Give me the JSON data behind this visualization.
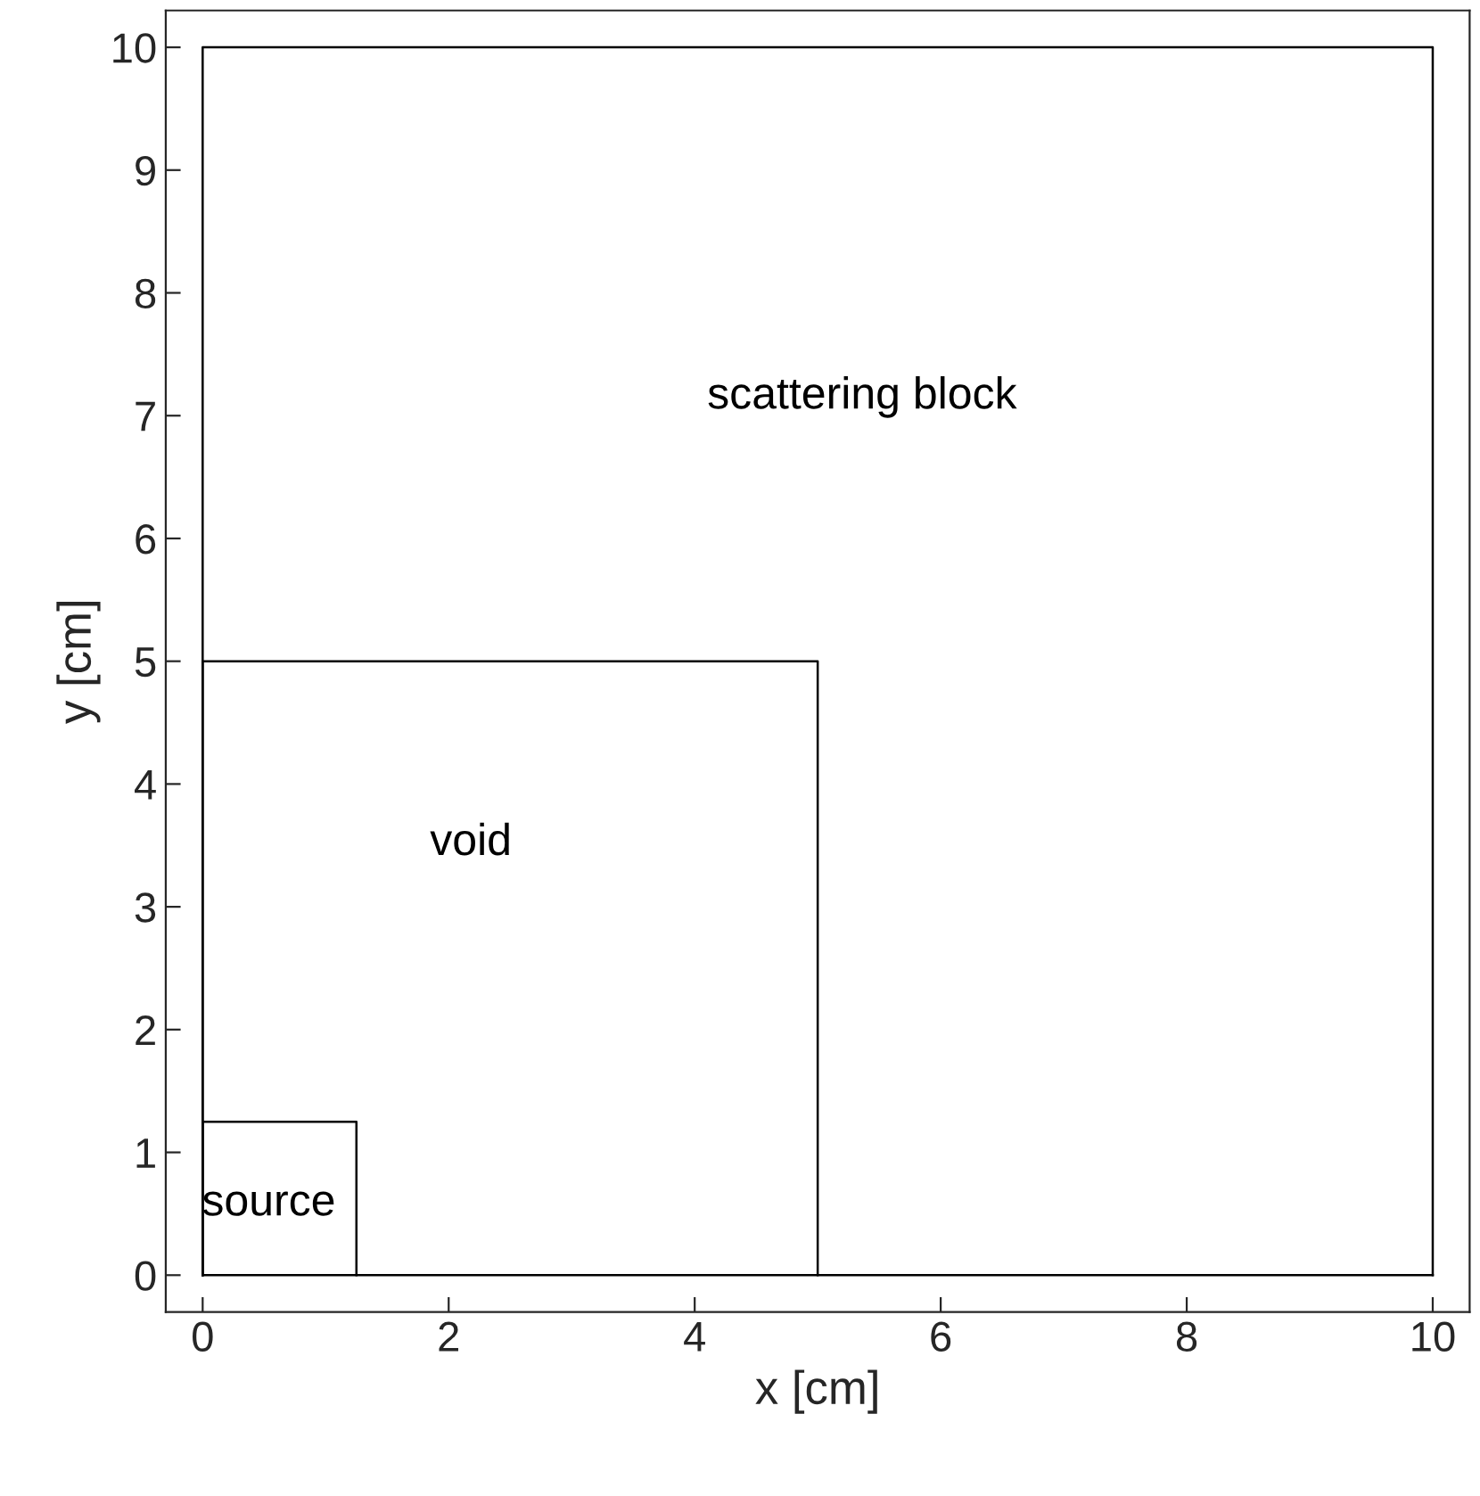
{
  "chart_data": {
    "type": "step",
    "xlabel": "x [cm]",
    "ylabel": "y [cm]",
    "series": [
      {
        "color": "#000000",
        "x": [
          0,
          0,
          10
        ],
        "values": [
          0,
          10,
          0
        ]
      },
      {
        "color": "#000000",
        "x": [
          0,
          0,
          5
        ],
        "values": [
          0,
          5,
          0
        ]
      },
      {
        "color": "#000000",
        "x": [
          0,
          0,
          1.25
        ],
        "values": [
          0,
          1.25,
          0
        ]
      },
      {
        "type": "line",
        "color": "#000000",
        "x": [
          0,
          10
        ],
        "values": [
          0,
          0
        ]
      }
    ],
    "annotations": [
      "scattering block",
      "void",
      "source"
    ],
    "xlim": [
      -0.3,
      10.3
    ],
    "ylim": [
      -0.3,
      10.3
    ],
    "xticks": [
      0,
      2,
      4,
      6,
      8,
      10
    ],
    "yticks": [
      0,
      1,
      2,
      3,
      4,
      5,
      6,
      7,
      8,
      9,
      10
    ],
    "grid": false,
    "legend": false,
    "marker": "none",
    "line_style": "solid"
  }
}
